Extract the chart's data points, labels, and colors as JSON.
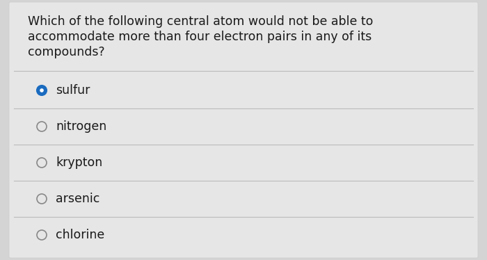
{
  "question_lines": [
    "Which of the following central atom would not be able to",
    "accommodate more than four electron pairs in any of its",
    "compounds?"
  ],
  "options": [
    "sulfur",
    "nitrogen",
    "krypton",
    "arsenic",
    "chlorine"
  ],
  "selected_index": 0,
  "bg_color": "#d4d4d4",
  "card_color": "#e6e6e6",
  "text_color": "#1a1a1a",
  "line_color": "#bbbbbb",
  "selected_fill": "#1a6bbf",
  "selected_border": "#1a6bbf",
  "unselected_fill": "#e6e6e6",
  "unselected_border": "#888888",
  "question_fontsize": 12.5,
  "option_fontsize": 12.5
}
